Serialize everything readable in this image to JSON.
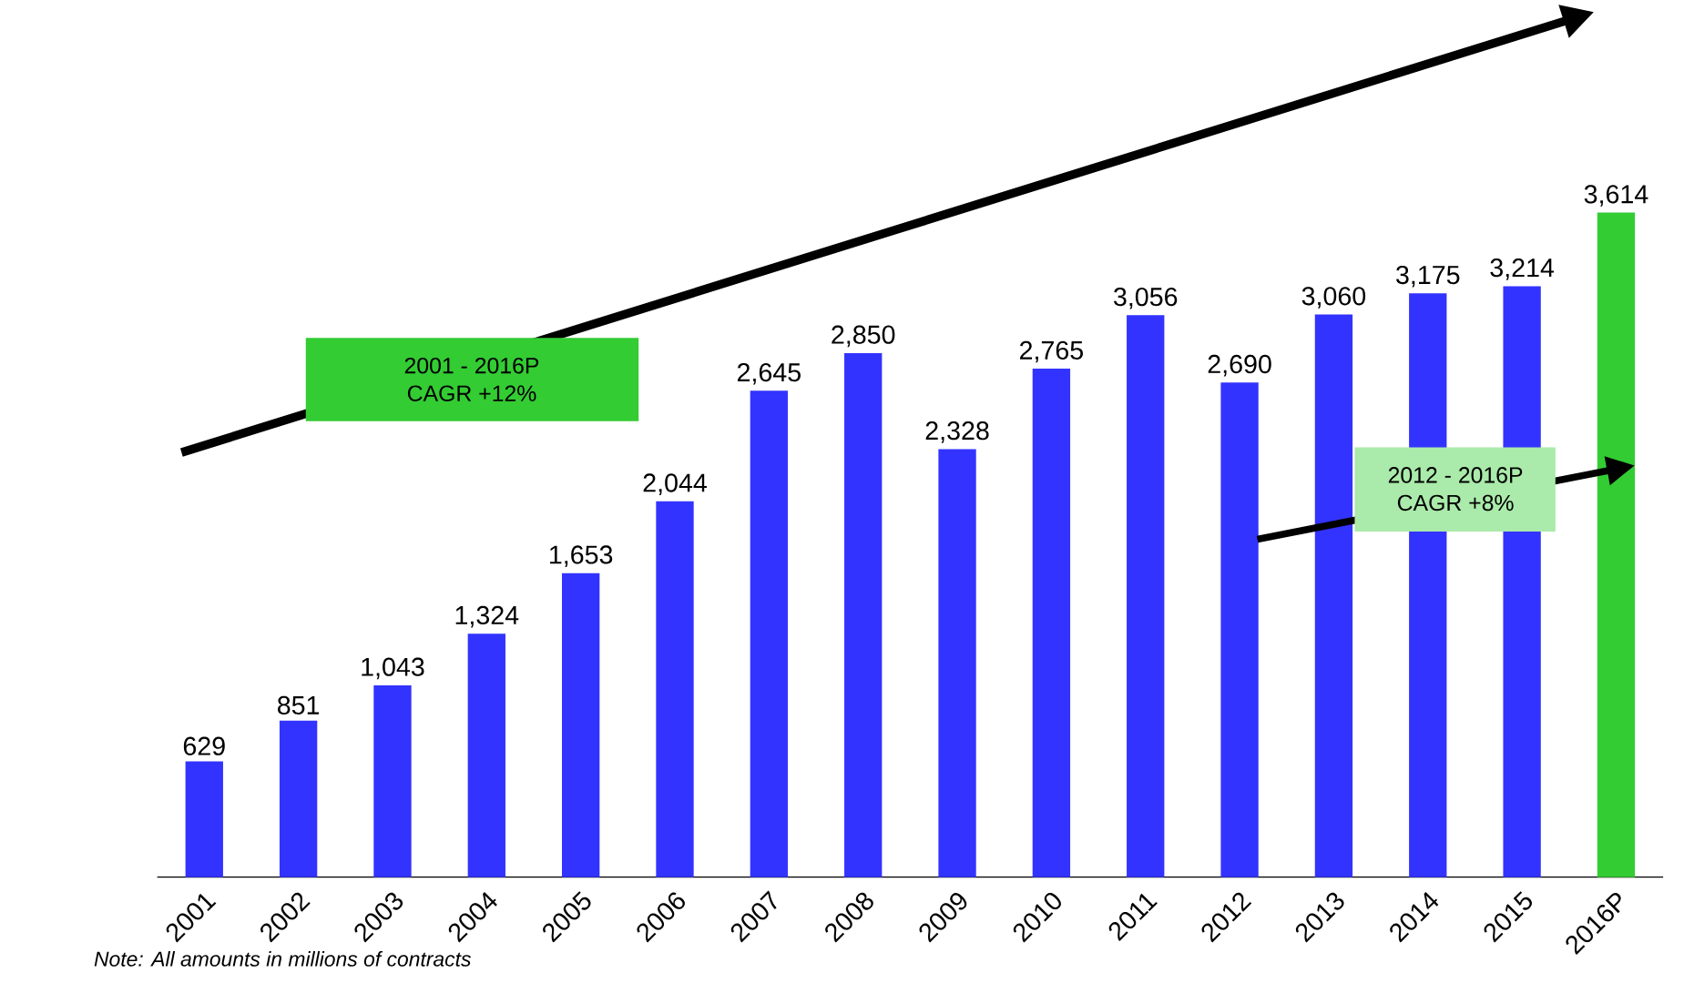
{
  "chart_data": {
    "type": "bar",
    "categories": [
      "2001",
      "2002",
      "2003",
      "2004",
      "2005",
      "2006",
      "2007",
      "2008",
      "2009",
      "2010",
      "2011",
      "2012",
      "2013",
      "2014",
      "2015",
      "2016P"
    ],
    "values": [
      629,
      851,
      1043,
      1324,
      1653,
      2044,
      2645,
      2850,
      2328,
      2765,
      3056,
      2690,
      3060,
      3175,
      3214,
      3614
    ],
    "value_labels": [
      "629",
      "851",
      "1,043",
      "1,324",
      "1,653",
      "2,044",
      "2,645",
      "2,850",
      "2,328",
      "2,765",
      "3,056",
      "2,690",
      "3,060",
      "3,175",
      "3,214",
      "3,614"
    ],
    "colors": [
      "#3333ff",
      "#3333ff",
      "#3333ff",
      "#3333ff",
      "#3333ff",
      "#3333ff",
      "#3333ff",
      "#3333ff",
      "#3333ff",
      "#3333ff",
      "#3333ff",
      "#3333ff",
      "#3333ff",
      "#3333ff",
      "#3333ff",
      "#33cc33"
    ],
    "annotations": [
      "2001 - 2016P",
      "CAGR  +12%",
      "2012 - 2016P",
      "CAGR  +8%",
      "Note: All amounts in millions of contracts"
    ]
  }
}
